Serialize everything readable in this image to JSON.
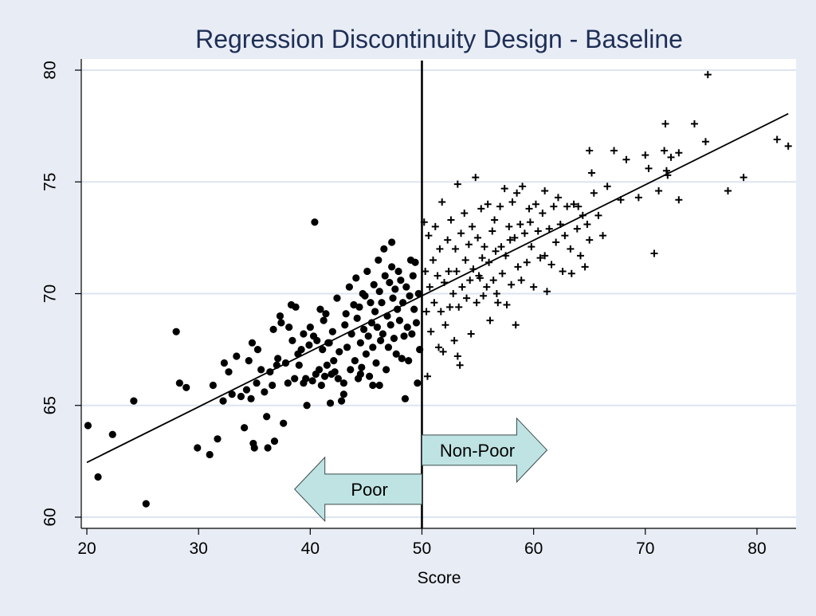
{
  "chart_data": {
    "type": "scatter",
    "title": "Regression Discontinuity Design - Baseline",
    "xlabel": "Score",
    "ylabel": "",
    "xlim": [
      19.5,
      83.5
    ],
    "ylim": [
      59.5,
      80.5
    ],
    "xticks": [
      20,
      30,
      40,
      50,
      60,
      70,
      80
    ],
    "yticks": [
      60,
      65,
      70,
      75,
      80
    ],
    "grid": true,
    "cutoff": 50,
    "regression_line": {
      "x": [
        20,
        82.8
      ],
      "y": [
        62.45,
        78.05
      ]
    },
    "annotations": [
      {
        "text": "Non-Poor",
        "direction": "right",
        "x_from": 50,
        "x_to": 61.2,
        "y": 63.0
      },
      {
        "text": "Poor",
        "direction": "left",
        "x_from": 50,
        "x_to": 38.6,
        "y": 61.25
      }
    ],
    "series": [
      {
        "marker": "circle",
        "points": [
          [
            20.1,
            64.1
          ],
          [
            21.0,
            61.8
          ],
          [
            22.3,
            63.7
          ],
          [
            24.2,
            65.2
          ],
          [
            25.3,
            60.6
          ],
          [
            28.0,
            68.3
          ],
          [
            28.3,
            66.0
          ],
          [
            28.9,
            65.8
          ],
          [
            29.9,
            63.1
          ],
          [
            31.0,
            62.8
          ],
          [
            31.3,
            65.9
          ],
          [
            31.7,
            63.5
          ],
          [
            32.2,
            65.2
          ],
          [
            32.3,
            66.9
          ],
          [
            32.7,
            66.5
          ],
          [
            33.0,
            65.5
          ],
          [
            33.4,
            67.2
          ],
          [
            33.8,
            65.4
          ],
          [
            34.1,
            64.0
          ],
          [
            34.3,
            65.7
          ],
          [
            34.5,
            67.0
          ],
          [
            34.7,
            65.3
          ],
          [
            34.8,
            67.8
          ],
          [
            34.9,
            63.3
          ],
          [
            35.0,
            63.1
          ],
          [
            35.2,
            66.0
          ],
          [
            35.3,
            67.5
          ],
          [
            35.6,
            66.6
          ],
          [
            35.9,
            65.6
          ],
          [
            36.1,
            64.5
          ],
          [
            36.2,
            63.1
          ],
          [
            36.4,
            66.5
          ],
          [
            36.6,
            65.9
          ],
          [
            36.7,
            68.4
          ],
          [
            36.8,
            63.4
          ],
          [
            37.0,
            66.8
          ],
          [
            37.1,
            67.1
          ],
          [
            37.3,
            69.0
          ],
          [
            37.4,
            68.7
          ],
          [
            37.6,
            64.2
          ],
          [
            37.8,
            66.9
          ],
          [
            38.0,
            66.0
          ],
          [
            38.1,
            68.5
          ],
          [
            38.3,
            69.5
          ],
          [
            38.4,
            67.9
          ],
          [
            38.6,
            66.2
          ],
          [
            38.7,
            69.4
          ],
          [
            38.9,
            67.3
          ],
          [
            39.0,
            66.8
          ],
          [
            39.2,
            67.5
          ],
          [
            39.4,
            68.2
          ],
          [
            39.6,
            66.2
          ],
          [
            39.7,
            65.0
          ],
          [
            39.9,
            67.7
          ],
          [
            40.0,
            68.5
          ],
          [
            40.2,
            66.1
          ],
          [
            40.3,
            68.1
          ],
          [
            40.4,
            73.2
          ],
          [
            40.5,
            66.4
          ],
          [
            40.6,
            67.9
          ],
          [
            40.8,
            66.6
          ],
          [
            40.9,
            69.3
          ],
          [
            41.0,
            65.9
          ],
          [
            41.1,
            67.5
          ],
          [
            41.2,
            68.8
          ],
          [
            41.3,
            66.3
          ],
          [
            41.4,
            69.1
          ],
          [
            41.5,
            66.8
          ],
          [
            41.6,
            67.8
          ],
          [
            41.8,
            65.1
          ],
          [
            41.9,
            66.4
          ],
          [
            42.0,
            68.3
          ],
          [
            42.1,
            67.0
          ],
          [
            42.2,
            66.5
          ],
          [
            42.4,
            69.8
          ],
          [
            42.5,
            66.2
          ],
          [
            42.6,
            67.4
          ],
          [
            42.8,
            65.2
          ],
          [
            43.0,
            66.0
          ],
          [
            43.1,
            68.6
          ],
          [
            43.2,
            69.1
          ],
          [
            43.3,
            67.6
          ],
          [
            43.5,
            70.3
          ],
          [
            43.6,
            66.6
          ],
          [
            43.7,
            68.2
          ],
          [
            43.9,
            69.5
          ],
          [
            44.0,
            67.0
          ],
          [
            44.1,
            70.7
          ],
          [
            44.2,
            68.9
          ],
          [
            44.3,
            66.2
          ],
          [
            44.4,
            69.4
          ],
          [
            44.5,
            67.8
          ],
          [
            44.6,
            66.7
          ],
          [
            44.7,
            70.0
          ],
          [
            44.8,
            68.4
          ],
          [
            44.9,
            69.9
          ],
          [
            45.0,
            67.3
          ],
          [
            45.1,
            71.0
          ],
          [
            45.2,
            68.1
          ],
          [
            45.3,
            66.3
          ],
          [
            45.4,
            69.6
          ],
          [
            45.5,
            68.7
          ],
          [
            45.6,
            67.6
          ],
          [
            45.7,
            70.4
          ],
          [
            45.8,
            69.2
          ],
          [
            45.9,
            66.9
          ],
          [
            46.0,
            68.5
          ],
          [
            46.1,
            71.5
          ],
          [
            46.2,
            70.1
          ],
          [
            46.3,
            67.9
          ],
          [
            46.4,
            69.6
          ],
          [
            46.5,
            68.2
          ],
          [
            46.6,
            72.0
          ],
          [
            46.7,
            70.8
          ],
          [
            46.8,
            66.6
          ],
          [
            46.9,
            69.0
          ],
          [
            47.0,
            67.6
          ],
          [
            47.1,
            70.5
          ],
          [
            47.2,
            68.6
          ],
          [
            47.3,
            71.2
          ],
          [
            47.4,
            69.8
          ],
          [
            47.5,
            68.0
          ],
          [
            47.6,
            70.2
          ],
          [
            47.7,
            67.3
          ],
          [
            47.8,
            69.3
          ],
          [
            47.9,
            71.0
          ],
          [
            48.0,
            68.8
          ],
          [
            48.1,
            70.6
          ],
          [
            48.2,
            67.1
          ],
          [
            48.3,
            69.6
          ],
          [
            48.4,
            68.1
          ],
          [
            48.5,
            65.3
          ],
          [
            48.6,
            70.3
          ],
          [
            48.7,
            68.5
          ],
          [
            48.8,
            67.0
          ],
          [
            48.9,
            69.9
          ],
          [
            49.0,
            71.5
          ],
          [
            49.1,
            68.2
          ],
          [
            49.2,
            70.8
          ],
          [
            49.3,
            69.3
          ],
          [
            49.4,
            71.4
          ],
          [
            49.5,
            68.7
          ],
          [
            49.6,
            66.0
          ],
          [
            49.7,
            70.0
          ],
          [
            49.8,
            67.5
          ],
          [
            46.2,
            65.9
          ],
          [
            45.6,
            65.9
          ],
          [
            44.5,
            66.4
          ],
          [
            43.0,
            65.5
          ],
          [
            39.4,
            66.0
          ],
          [
            41.7,
            67.8
          ],
          [
            47.3,
            72.3
          ]
        ]
      },
      {
        "marker": "plus",
        "points": [
          [
            50.2,
            73.2
          ],
          [
            50.3,
            71.0
          ],
          [
            50.4,
            69.2
          ],
          [
            50.5,
            66.3
          ],
          [
            50.6,
            72.6
          ],
          [
            50.7,
            70.3
          ],
          [
            50.8,
            68.3
          ],
          [
            51.0,
            71.5
          ],
          [
            51.1,
            69.6
          ],
          [
            51.2,
            73.0
          ],
          [
            51.4,
            70.8
          ],
          [
            51.5,
            67.6
          ],
          [
            51.6,
            72.0
          ],
          [
            51.7,
            69.2
          ],
          [
            51.8,
            74.1
          ],
          [
            52.0,
            70.5
          ],
          [
            52.1,
            68.6
          ],
          [
            52.3,
            72.4
          ],
          [
            52.4,
            71.0
          ],
          [
            52.5,
            69.4
          ],
          [
            52.6,
            73.3
          ],
          [
            52.8,
            70.0
          ],
          [
            52.9,
            67.9
          ],
          [
            53.0,
            72.0
          ],
          [
            53.1,
            71.0
          ],
          [
            53.2,
            74.9
          ],
          [
            53.3,
            69.4
          ],
          [
            53.4,
            66.8
          ],
          [
            53.5,
            72.7
          ],
          [
            53.6,
            70.3
          ],
          [
            53.8,
            73.6
          ],
          [
            53.9,
            71.5
          ],
          [
            54.0,
            69.8
          ],
          [
            54.2,
            72.2
          ],
          [
            54.3,
            70.6
          ],
          [
            54.4,
            68.2
          ],
          [
            54.5,
            73.0
          ],
          [
            54.6,
            71.1
          ],
          [
            54.8,
            75.2
          ],
          [
            54.9,
            69.6
          ],
          [
            55.0,
            72.5
          ],
          [
            55.1,
            70.8
          ],
          [
            55.3,
            73.8
          ],
          [
            55.4,
            71.6
          ],
          [
            55.5,
            69.9
          ],
          [
            55.6,
            72.1
          ],
          [
            55.8,
            70.3
          ],
          [
            55.9,
            74.0
          ],
          [
            56.0,
            71.4
          ],
          [
            56.1,
            68.8
          ],
          [
            56.3,
            72.8
          ],
          [
            56.4,
            70.6
          ],
          [
            56.5,
            73.3
          ],
          [
            56.6,
            71.9
          ],
          [
            56.8,
            69.6
          ],
          [
            57.0,
            73.9
          ],
          [
            57.1,
            72.1
          ],
          [
            57.2,
            70.9
          ],
          [
            57.4,
            74.7
          ],
          [
            57.5,
            71.7
          ],
          [
            57.6,
            69.5
          ],
          [
            57.8,
            73.0
          ],
          [
            57.9,
            72.4
          ],
          [
            58.0,
            70.4
          ],
          [
            58.1,
            74.1
          ],
          [
            58.3,
            72.5
          ],
          [
            58.4,
            68.6
          ],
          [
            58.5,
            74.5
          ],
          [
            58.6,
            71.2
          ],
          [
            58.8,
            73.1
          ],
          [
            58.9,
            70.6
          ],
          [
            59.0,
            74.8
          ],
          [
            59.2,
            72.7
          ],
          [
            59.4,
            71.4
          ],
          [
            59.6,
            73.8
          ],
          [
            59.8,
            72.1
          ],
          [
            60.0,
            70.3
          ],
          [
            60.2,
            74.0
          ],
          [
            60.4,
            72.8
          ],
          [
            60.6,
            71.6
          ],
          [
            60.8,
            73.6
          ],
          [
            61.0,
            74.6
          ],
          [
            61.2,
            70.1
          ],
          [
            61.4,
            72.9
          ],
          [
            61.6,
            71.3
          ],
          [
            61.8,
            73.9
          ],
          [
            62.0,
            72.3
          ],
          [
            62.2,
            74.3
          ],
          [
            62.4,
            73.1
          ],
          [
            62.6,
            71.0
          ],
          [
            62.8,
            72.6
          ],
          [
            63.0,
            73.9
          ],
          [
            63.3,
            72.0
          ],
          [
            63.6,
            74.0
          ],
          [
            63.9,
            72.9
          ],
          [
            64.2,
            71.7
          ],
          [
            64.4,
            73.5
          ],
          [
            64.6,
            71.2
          ],
          [
            64.8,
            73.1
          ],
          [
            65.0,
            72.4
          ],
          [
            65.0,
            76.4
          ],
          [
            65.2,
            75.4
          ],
          [
            65.4,
            74.5
          ],
          [
            65.8,
            73.5
          ],
          [
            66.2,
            72.6
          ],
          [
            66.6,
            74.8
          ],
          [
            67.2,
            76.4
          ],
          [
            67.8,
            74.2
          ],
          [
            68.3,
            76.0
          ],
          [
            69.4,
            74.3
          ],
          [
            70.0,
            76.2
          ],
          [
            70.3,
            75.6
          ],
          [
            70.8,
            71.8
          ],
          [
            71.2,
            74.6
          ],
          [
            71.7,
            76.4
          ],
          [
            71.8,
            77.6
          ],
          [
            72.0,
            75.3
          ],
          [
            72.3,
            76.1
          ],
          [
            73.0,
            76.3
          ],
          [
            73.0,
            74.2
          ],
          [
            74.4,
            77.6
          ],
          [
            75.4,
            76.8
          ],
          [
            75.6,
            79.8
          ],
          [
            77.4,
            74.6
          ],
          [
            78.8,
            75.2
          ],
          [
            81.8,
            76.9
          ],
          [
            82.8,
            76.6
          ],
          [
            71.9,
            75.5
          ],
          [
            64.0,
            73.9
          ],
          [
            63.4,
            70.9
          ],
          [
            61.0,
            71.7
          ],
          [
            59.7,
            73.2
          ],
          [
            56.7,
            70.0
          ],
          [
            53.2,
            67.2
          ],
          [
            51.9,
            67.4
          ],
          [
            55.2,
            70.7
          ]
        ]
      }
    ]
  }
}
